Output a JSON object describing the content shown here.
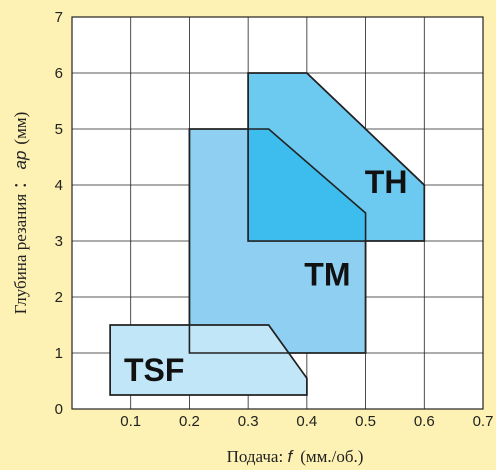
{
  "chart_data": {
    "type": "area",
    "title": "",
    "xlabel": {
      "prefix": "Подача: ",
      "symbol": "f",
      "unit": "(мм./об.)"
    },
    "ylabel": {
      "prefix": "Глубина резания ：",
      "symbol": "ap",
      "unit": "(мм)"
    },
    "xlim": [
      0,
      0.7
    ],
    "ylim": [
      0,
      7
    ],
    "x_ticks": [
      "0.1",
      "0.2",
      "0.3",
      "0.4",
      "0.5",
      "0.6",
      "0.7"
    ],
    "y_ticks": [
      "0",
      "1",
      "2",
      "3",
      "4",
      "5",
      "6",
      "7"
    ],
    "grid": true,
    "regions": [
      {
        "name": "TM",
        "color": "#8fd0f2",
        "points": [
          [
            0.2,
            1
          ],
          [
            0.2,
            5
          ],
          [
            0.335,
            5
          ],
          [
            0.5,
            3.5
          ],
          [
            0.5,
            1
          ]
        ],
        "label_pos": [
          0.435,
          2.4
        ]
      },
      {
        "name": "TH",
        "color": "#6cc9f0",
        "points": [
          [
            0.3,
            3
          ],
          [
            0.3,
            6
          ],
          [
            0.4,
            6
          ],
          [
            0.6,
            4
          ],
          [
            0.6,
            3
          ]
        ],
        "label_pos": [
          0.535,
          4.05
        ]
      },
      {
        "name": "TSF",
        "color": "#c0e6f8",
        "points": [
          [
            0.065,
            0.25
          ],
          [
            0.065,
            1.5
          ],
          [
            0.335,
            1.5
          ],
          [
            0.4,
            0.55
          ],
          [
            0.4,
            0.25
          ]
        ],
        "label_pos": [
          0.14,
          0.7
        ]
      }
    ],
    "overlap_color": "#3dbdee"
  }
}
